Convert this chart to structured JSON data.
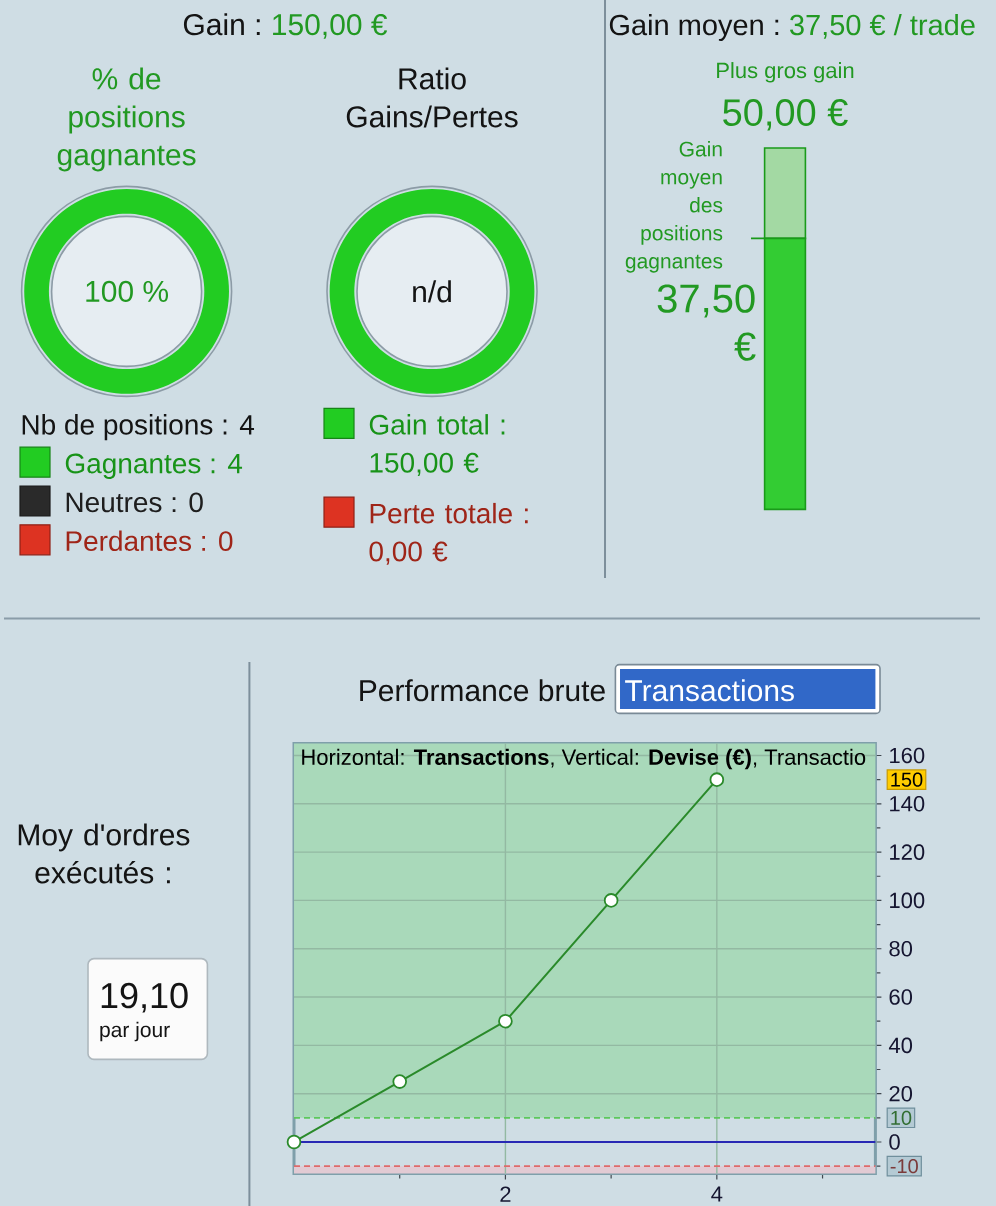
{
  "chart_data": [
    {
      "type": "other",
      "title": "Gain :",
      "subtitle": "150,00 €"
    },
    {
      "type": "donut",
      "title": "% de positions gagnantes",
      "categories": [
        "Gagnantes : 4",
        "Neutres : 0",
        "Perdantes : 0"
      ],
      "values": [
        4,
        0,
        0
      ],
      "colors": [
        "#22cc22",
        "#2a2a2a",
        "#dd3322"
      ],
      "legend": "bottom",
      "legend_title": "Nb de positions : 4",
      "annotations": [
        "100 %"
      ]
    },
    {
      "type": "donut",
      "title": "Ratio Gains/Pertes",
      "categories": [
        "Gain total : 150,00 €",
        "Perte totale : 0,00 €"
      ],
      "values": [
        150,
        0
      ],
      "colors": [
        "#22cc22",
        "#dd3322"
      ],
      "legend": "bottom",
      "annotations": [
        "n/d"
      ]
    },
    {
      "type": "bar",
      "title": "Gain moyen :",
      "subtitle": "37,50 € / trade",
      "categories": [
        null
      ],
      "stacked": true,
      "series": [
        {
          "name": "Gain moyen des positions gagnantes",
          "color": "#33cc33",
          "values": [
            37.5
          ],
          "value_labels": [
            "37,50 €"
          ]
        },
        {
          "color": "#a3d9a3",
          "values": [
            12.5
          ]
        }
      ],
      "totals": [
        "50,00 €"
      ],
      "annotations": [
        "Plus gros gain"
      ]
    },
    {
      "type": "other",
      "title": "Moy d'ordres exécutés :",
      "annotations": [
        "19,10",
        "par jour"
      ]
    },
    {
      "type": "line",
      "title": "Performance brute",
      "subtitle": "Transactions",
      "x": [
        0,
        1,
        2,
        3,
        4
      ],
      "values": [
        0,
        25,
        50,
        100,
        150
      ],
      "color": "#2a8a2a",
      "marker": "circle",
      "xlim": [
        0,
        5.5
      ],
      "ylim": [
        -13,
        165
      ],
      "xticks": [
        {
          "value": 1,
          "label": null
        },
        2,
        {
          "value": 3,
          "label": null
        },
        4,
        {
          "value": 5,
          "label": null
        }
      ],
      "yticks": [
        {
          "value": -10,
          "label": null
        },
        0,
        {
          "value": 10,
          "label": null
        },
        20,
        {
          "value": 30,
          "label": null
        },
        40,
        {
          "value": 50,
          "label": null
        },
        60,
        {
          "value": 70,
          "label": null
        },
        80,
        {
          "value": 90,
          "label": null
        },
        100,
        {
          "value": 110,
          "label": null
        },
        120,
        {
          "value": 130,
          "label": null
        },
        140,
        {
          "value": 150,
          "label": null
        },
        160
      ],
      "grid": true,
      "ref_lines": [
        {
          "axis": "y",
          "value": 10,
          "label": "10",
          "color": "#5cc85c",
          "line_style": "dashed"
        },
        {
          "axis": "y",
          "value": 0,
          "color": "#2828b4"
        },
        {
          "axis": "y",
          "value": -10,
          "label": "-10",
          "color": "#e06a6a",
          "line_style": "dashed"
        }
      ],
      "bands": [
        {
          "axis": "y",
          "from": 10,
          "to": 165,
          "color": "#a9d9ba"
        },
        {
          "axis": "y",
          "from": -13,
          "to": -10,
          "color": "#e2cad3"
        }
      ],
      "annotations": [
        "Horizontal: **Transactions**, Vertical: **Devise (€)**, Transactio",
        "150"
      ]
    }
  ]
}
